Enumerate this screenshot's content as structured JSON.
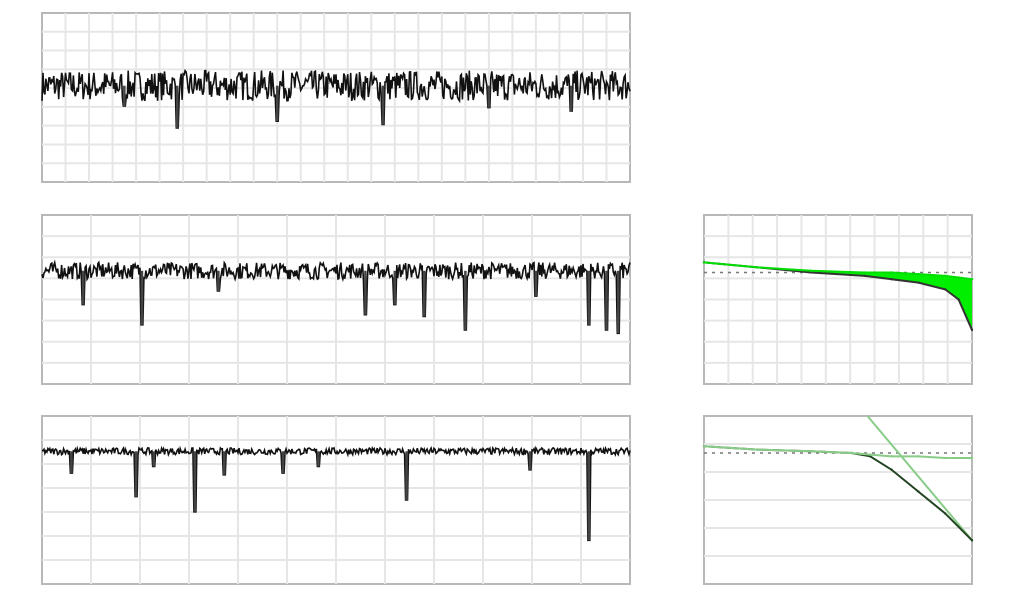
{
  "chart_data": [
    {
      "id": "trace-top",
      "type": "line",
      "xlim": [
        0,
        100
      ],
      "ylim": [
        0,
        100
      ],
      "grid": {
        "v": 24,
        "h": 8
      },
      "baseline": 57,
      "noise_amplitude": 9,
      "color": "#111111",
      "spikes": [
        {
          "x": 23,
          "y": 32
        },
        {
          "x": 40,
          "y": 36
        },
        {
          "x": 58,
          "y": 34
        },
        {
          "x": 90,
          "y": 42
        },
        {
          "x": 14,
          "y": 45
        },
        {
          "x": 76,
          "y": 44
        }
      ]
    },
    {
      "id": "trace-middle",
      "type": "line",
      "xlim": [
        0,
        100
      ],
      "ylim": [
        0,
        100
      ],
      "grid": {
        "v": 11,
        "h": 7
      },
      "baseline": 67,
      "noise_amplitude": 5,
      "color": "#111111",
      "spikes": [
        {
          "x": 7,
          "y": 47
        },
        {
          "x": 17,
          "y": 35
        },
        {
          "x": 55,
          "y": 41
        },
        {
          "x": 60,
          "y": 47
        },
        {
          "x": 65,
          "y": 40
        },
        {
          "x": 72,
          "y": 32
        },
        {
          "x": 93,
          "y": 35
        },
        {
          "x": 96,
          "y": 32
        },
        {
          "x": 98,
          "y": 30
        },
        {
          "x": 30,
          "y": 55
        },
        {
          "x": 84,
          "y": 52
        }
      ]
    },
    {
      "id": "trace-bottom",
      "type": "line",
      "xlim": [
        0,
        100
      ],
      "ylim": [
        0,
        100
      ],
      "grid": {
        "v": 11,
        "h": 6
      },
      "baseline": 79,
      "noise_amplitude": 2,
      "color": "#111111",
      "spikes": [
        {
          "x": 5,
          "y": 66
        },
        {
          "x": 16,
          "y": 52
        },
        {
          "x": 26,
          "y": 43
        },
        {
          "x": 31,
          "y": 65
        },
        {
          "x": 41,
          "y": 66
        },
        {
          "x": 62,
          "y": 50
        },
        {
          "x": 83,
          "y": 68
        },
        {
          "x": 93,
          "y": 26
        },
        {
          "x": 19,
          "y": 70
        },
        {
          "x": 47,
          "y": 70
        }
      ]
    },
    {
      "id": "spectrum-top",
      "type": "area",
      "xlim": [
        0,
        100
      ],
      "ylim": [
        0,
        100
      ],
      "grid": {
        "v": 10,
        "h": 7
      },
      "x": [
        0,
        20,
        40,
        60,
        70,
        80,
        90,
        95,
        100
      ],
      "series": [
        {
          "values": [
            72,
            69,
            66,
            64,
            62,
            60,
            56,
            50,
            32
          ],
          "color": "#333333"
        },
        {
          "values": [
            72,
            69,
            67,
            66,
            66,
            65,
            64,
            63,
            62
          ],
          "color": "#00dd00"
        }
      ],
      "reference": 66,
      "fill_color": "#00ee00"
    },
    {
      "id": "spectrum-bottom",
      "type": "line",
      "xlim": [
        0,
        100
      ],
      "ylim": [
        0,
        100
      ],
      "grid": {
        "v": 0,
        "h": 5
      },
      "x": [
        0,
        20,
        40,
        55,
        62,
        70,
        80,
        90,
        100
      ],
      "series": [
        {
          "values": [
            82,
            80,
            79,
            78,
            76,
            68,
            55,
            42,
            26
          ],
          "color": "#224422"
        },
        {
          "values": [
            82,
            80,
            79,
            78,
            77,
            76,
            76,
            75,
            75
          ],
          "color": "#88cc88"
        }
      ],
      "asymptote": {
        "x": [
          61,
          100
        ],
        "y": [
          100,
          26
        ],
        "color": "#88cc88"
      },
      "reference": 78
    }
  ]
}
